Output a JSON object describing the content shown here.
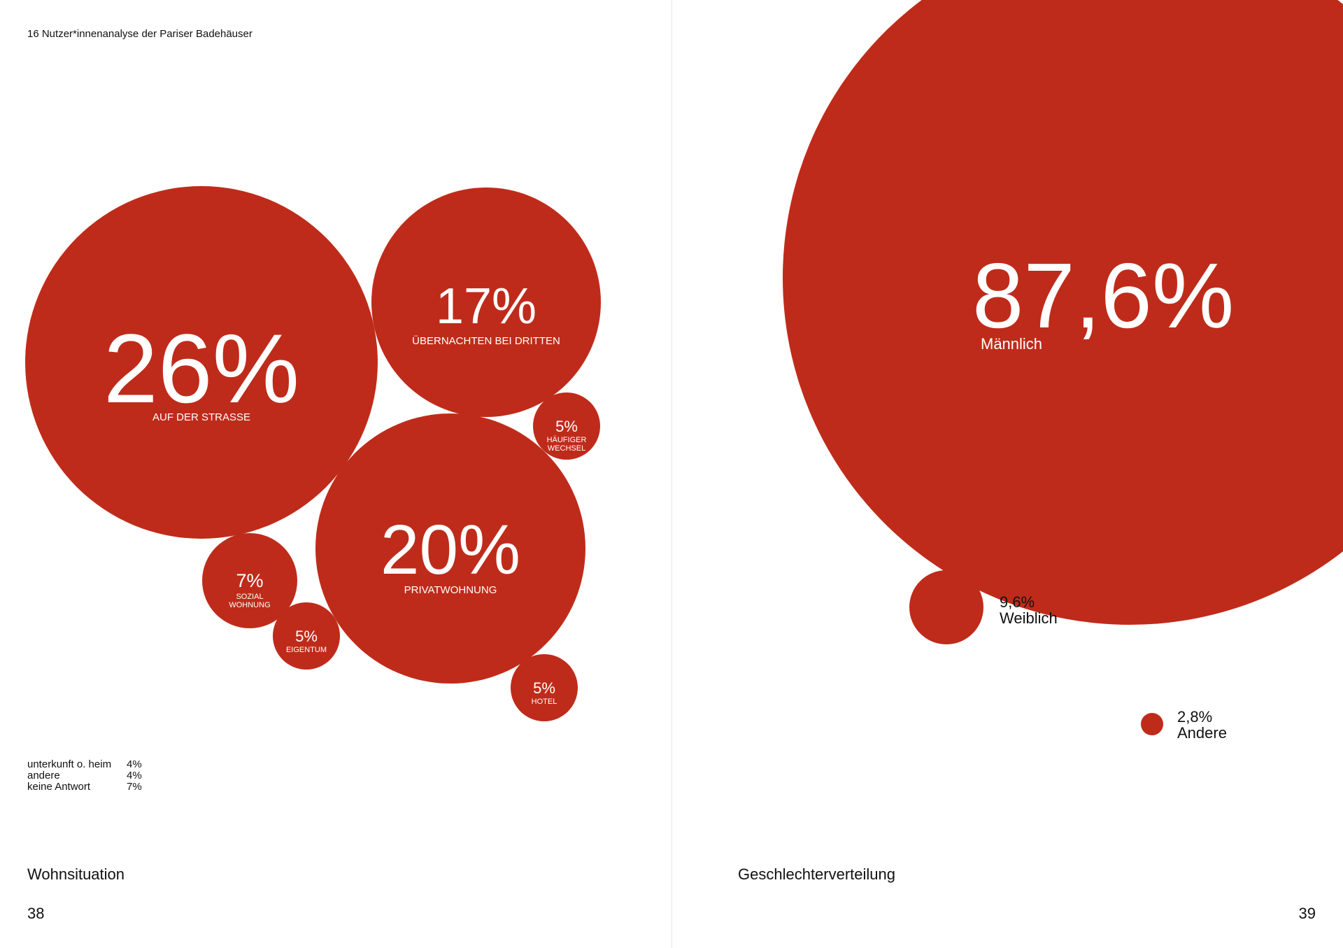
{
  "header": {
    "running_head": "16 Nutzer*innenanalyse der Pariser Badehäuser"
  },
  "colors": {
    "accent": "#BF2B1A",
    "on_accent": "#ffffff",
    "text": "#111111"
  },
  "chart_data": [
    {
      "type": "bubble",
      "title": "Wohnsituation",
      "series": [
        {
          "value_label": "26%",
          "value": 26,
          "label": "AUF DER STRASSE"
        },
        {
          "value_label": "17%",
          "value": 17,
          "label": "ÜBERNACHTEN BEI DRITTEN"
        },
        {
          "value_label": "20%",
          "value": 20,
          "label": "PRIVATWOHNUNG"
        },
        {
          "value_label": "5%",
          "value": 5,
          "label": "HÄUFIGER WECHSEL"
        },
        {
          "value_label": "7%",
          "value": 7,
          "label": "SOZIAL WOHNUNG"
        },
        {
          "value_label": "5%",
          "value": 5,
          "label": "EIGENTUM"
        },
        {
          "value_label": "5%",
          "value": 5,
          "label": "HOTEL"
        }
      ],
      "legend": [
        {
          "label": "unterkunft o. heim",
          "value": "4%"
        },
        {
          "label": "andere",
          "value": "4%"
        },
        {
          "label": "keine Antwort",
          "value": "7%"
        }
      ],
      "page_number": "38"
    },
    {
      "type": "bubble",
      "title": "Geschlechterverteilung",
      "series": [
        {
          "value_label": "87,6%",
          "value": 87.6,
          "label": "Männlich"
        },
        {
          "value_label": "9,6%",
          "value": 9.6,
          "label": "Weiblich"
        },
        {
          "value_label": "2,8%",
          "value": 2.8,
          "label": "Andere"
        }
      ],
      "page_number": "39"
    }
  ]
}
